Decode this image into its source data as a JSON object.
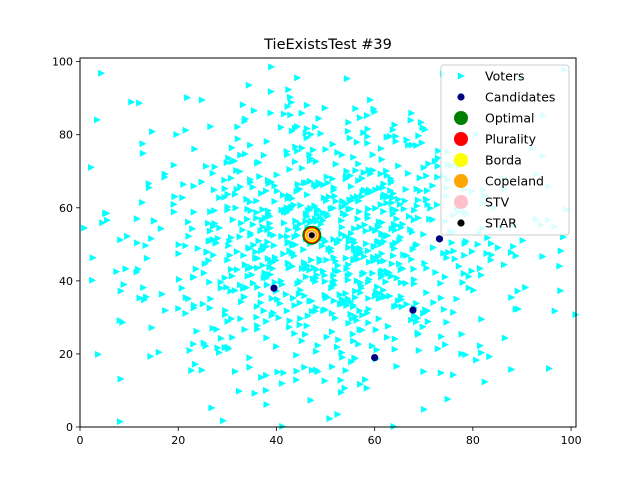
{
  "chart_data": {
    "type": "scatter",
    "title": "TieExistsTest #39",
    "xlabel": "",
    "ylabel": "",
    "xlim": [
      0,
      101
    ],
    "ylim": [
      0,
      101
    ],
    "x_ticks": [
      "0",
      "20",
      "40",
      "60",
      "80",
      "100"
    ],
    "y_ticks": [
      "0",
      "20",
      "40",
      "60",
      "80",
      "100"
    ],
    "grid": false,
    "legend_position": "top-right",
    "voters": {
      "name": "Voters",
      "marker": "triangle-right",
      "color": "#00ffff",
      "count": 1000,
      "seed": 39,
      "center": [
        50,
        50
      ],
      "spread": 20
    },
    "candidates": {
      "name": "Candidates",
      "color": "#000080",
      "points": [
        [
          47.2,
          52.5
        ],
        [
          39.5,
          38.0
        ],
        [
          73.2,
          51.5
        ],
        [
          67.8,
          32.0
        ],
        [
          60.0,
          19.0
        ]
      ]
    },
    "winners": [
      {
        "name": "Optimal",
        "color": "#008000",
        "x": 47.2,
        "y": 52.5
      },
      {
        "name": "Plurality",
        "color": "#ff0000",
        "x": 47.2,
        "y": 52.5
      },
      {
        "name": "Borda",
        "color": "#ffff00",
        "x": 47.2,
        "y": 52.5
      },
      {
        "name": "Copeland",
        "color": "#ffa500",
        "x": 47.2,
        "y": 52.5
      },
      {
        "name": "STV",
        "color": "#ffc0cb",
        "x": 47.2,
        "y": 52.5
      },
      {
        "name": "STAR",
        "color": "#000000",
        "x": 47.2,
        "y": 52.5
      }
    ],
    "legend": [
      "Voters",
      "Candidates",
      "Optimal",
      "Plurality",
      "Borda",
      "Copeland",
      "STV",
      "STAR"
    ]
  }
}
